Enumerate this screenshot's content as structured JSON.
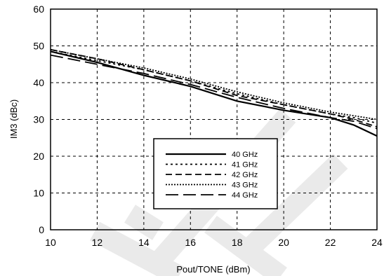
{
  "chart_data": {
    "type": "line",
    "title": "",
    "xlabel": "Pout/TONE (dBm)",
    "ylabel": "IM3 (dBc)",
    "xlim": [
      10,
      24
    ],
    "ylim": [
      0,
      60
    ],
    "xticks": [
      10,
      12,
      14,
      16,
      18,
      20,
      22,
      24
    ],
    "yticks": [
      0,
      10,
      20,
      30,
      40,
      50,
      60
    ],
    "grid": true,
    "legend_position": "center-lower",
    "series": [
      {
        "name": "40 GHz",
        "dash": "solid",
        "points": [
          [
            10,
            48.5
          ],
          [
            12,
            45.5
          ],
          [
            14,
            42
          ],
          [
            16,
            39
          ],
          [
            18,
            35
          ],
          [
            20,
            32.5
          ],
          [
            22,
            30.5
          ],
          [
            23,
            28.5
          ],
          [
            24,
            25.5
          ]
        ]
      },
      {
        "name": "41 GHz",
        "dash": "dotted-short",
        "points": [
          [
            10,
            48.5
          ],
          [
            12,
            46
          ],
          [
            14,
            43.5
          ],
          [
            16,
            40.5
          ],
          [
            18,
            37
          ],
          [
            20,
            34
          ],
          [
            22,
            31.5
          ],
          [
            23,
            30.5
          ],
          [
            24,
            29
          ]
        ]
      },
      {
        "name": "42 GHz",
        "dash": "dashed",
        "points": [
          [
            10,
            49
          ],
          [
            12,
            46.5
          ],
          [
            14,
            43.5
          ],
          [
            16,
            40.5
          ],
          [
            18,
            36.5
          ],
          [
            20,
            34
          ],
          [
            22,
            31.5
          ],
          [
            23,
            30
          ],
          [
            24,
            28
          ]
        ]
      },
      {
        "name": "43 GHz",
        "dash": "dotted",
        "points": [
          [
            10,
            49
          ],
          [
            12,
            46.5
          ],
          [
            14,
            44
          ],
          [
            16,
            41
          ],
          [
            18,
            37.5
          ],
          [
            20,
            34.5
          ],
          [
            22,
            32
          ],
          [
            23,
            31
          ],
          [
            24,
            30
          ]
        ]
      },
      {
        "name": "44 GHz",
        "dash": "long-dash",
        "points": [
          [
            10,
            47.5
          ],
          [
            12,
            45
          ],
          [
            14,
            42.5
          ],
          [
            16,
            39.5
          ],
          [
            18,
            36
          ],
          [
            20,
            33
          ],
          [
            22,
            30.5
          ],
          [
            23,
            29.5
          ],
          [
            24,
            27.5
          ]
        ]
      }
    ]
  }
}
